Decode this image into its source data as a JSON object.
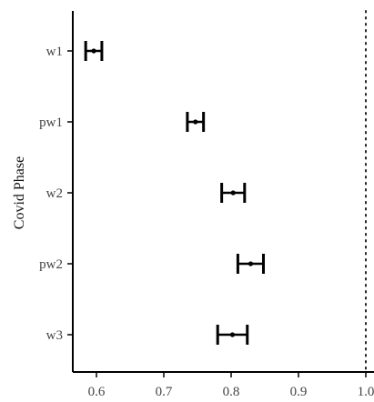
{
  "chart_data": {
    "type": "forest",
    "ylabel": "Covid Phase",
    "xlabel": "",
    "xlim": [
      0.56,
      1.0
    ],
    "x_ticks": [
      0.6,
      0.7,
      0.8,
      0.9,
      1.0
    ],
    "x_tick_labels": [
      "0.6",
      "0.7",
      "0.8",
      "0.9",
      "1.0"
    ],
    "reference_line": 1.0,
    "categories": [
      "w1",
      "pw1",
      "w2",
      "pw2",
      "w3"
    ],
    "estimates": [
      {
        "label": "w1",
        "value": 0.596,
        "lower": 0.584,
        "upper": 0.608
      },
      {
        "label": "pw1",
        "value": 0.747,
        "lower": 0.735,
        "upper": 0.759
      },
      {
        "label": "w2",
        "value": 0.803,
        "lower": 0.786,
        "upper": 0.82
      },
      {
        "label": "pw2",
        "value": 0.829,
        "lower": 0.81,
        "upper": 0.848
      },
      {
        "label": "w3",
        "value": 0.802,
        "lower": 0.78,
        "upper": 0.824
      }
    ],
    "grid": false,
    "legend": "none"
  }
}
